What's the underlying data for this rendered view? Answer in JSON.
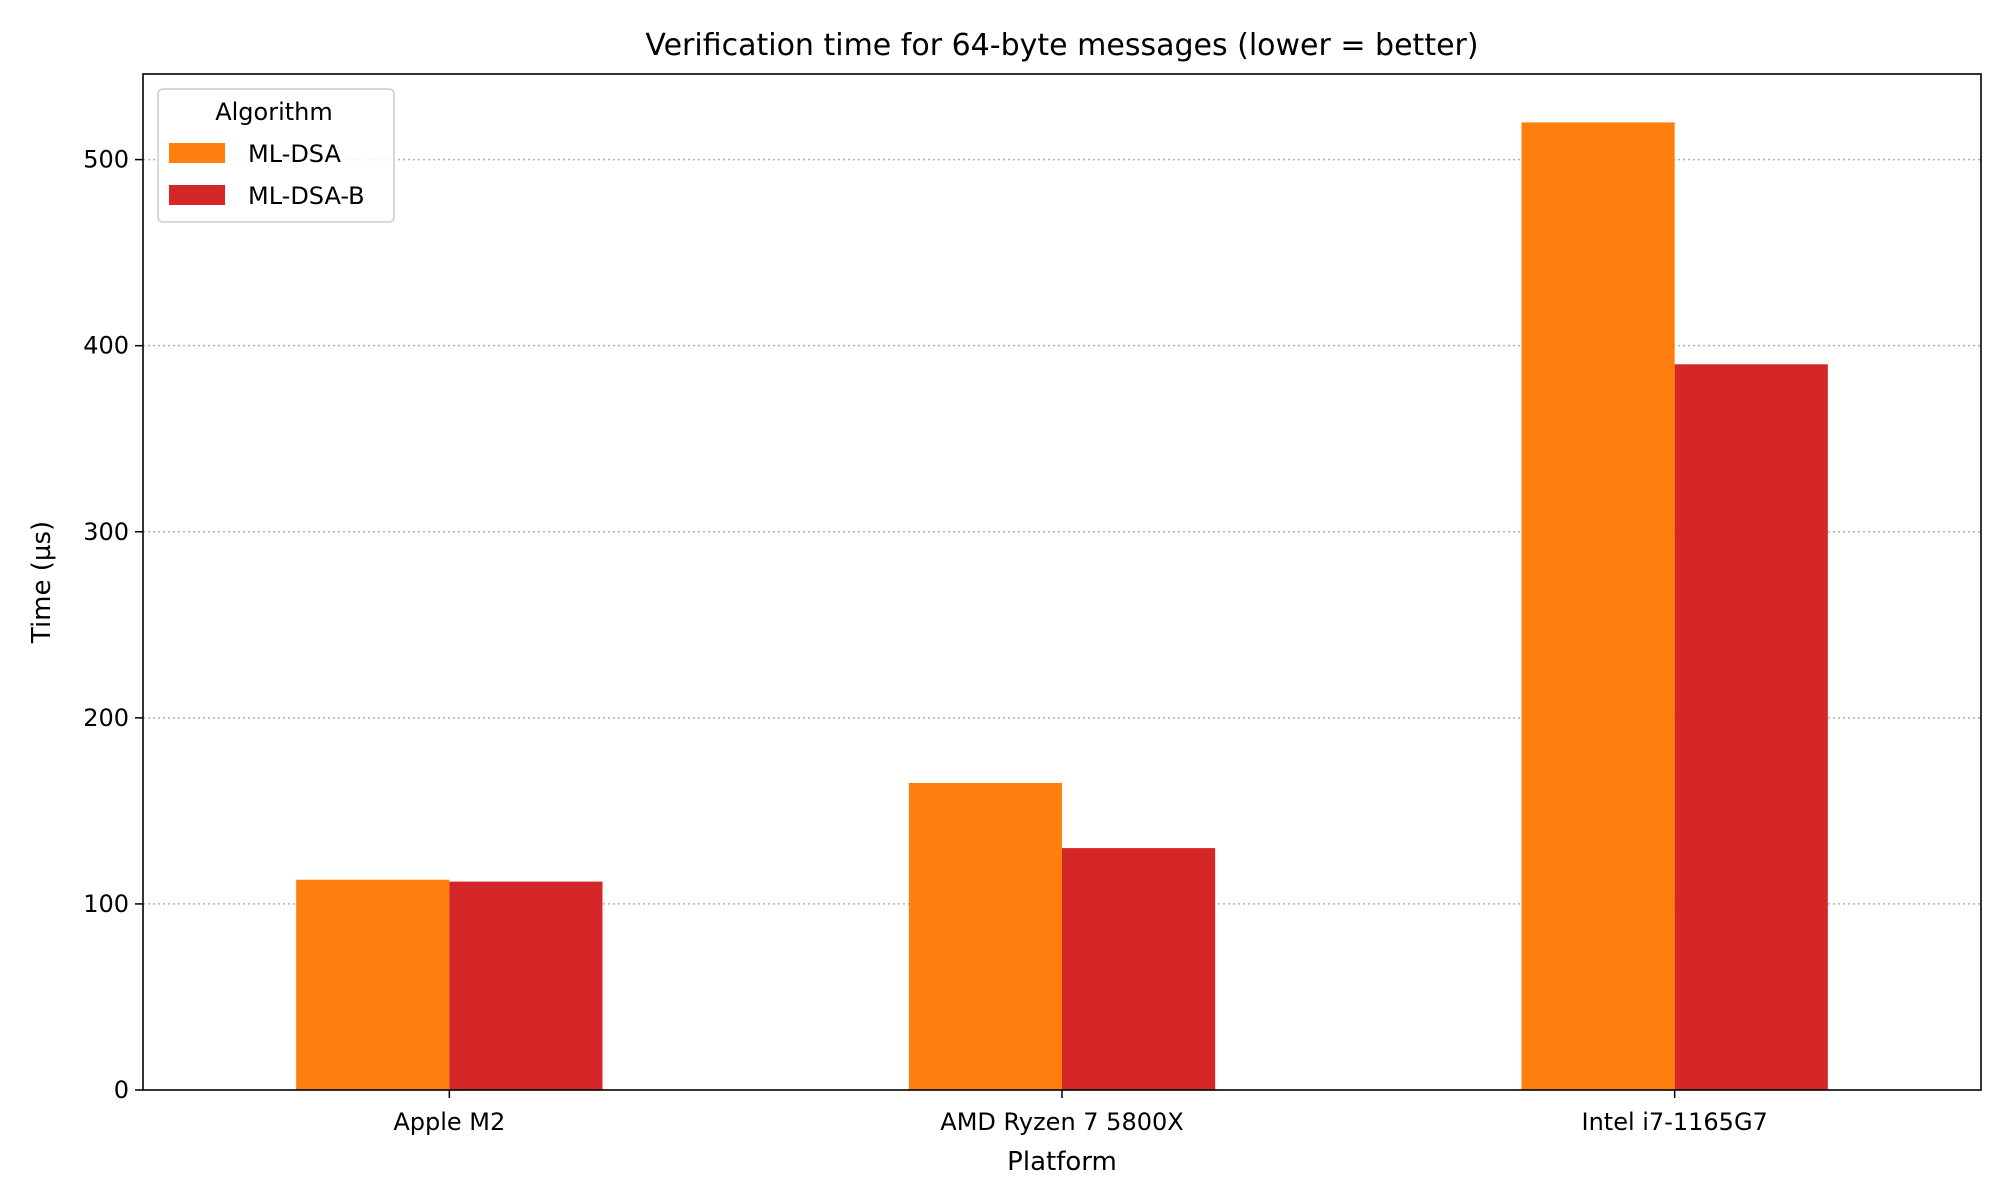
{
  "chart_data": {
    "type": "bar",
    "title": "Verification time for 64-byte messages (lower = better)",
    "xlabel": "Platform",
    "ylabel": "Time (µs)",
    "categories": [
      "Apple M2",
      "AMD Ryzen 7 5800X",
      "Intel i7-1165G7"
    ],
    "series": [
      {
        "name": "ML-DSA",
        "color": "#ff7f0e",
        "values": [
          113,
          165,
          520
        ]
      },
      {
        "name": "ML-DSA-B",
        "color": "#d62728",
        "values": [
          112,
          130,
          390
        ]
      }
    ],
    "ylim": [
      0,
      546
    ],
    "yticks": [
      0,
      100,
      200,
      300,
      400,
      500
    ],
    "grid": "y-dotted",
    "legend": {
      "title": "Algorithm",
      "placement": "top-left"
    }
  }
}
